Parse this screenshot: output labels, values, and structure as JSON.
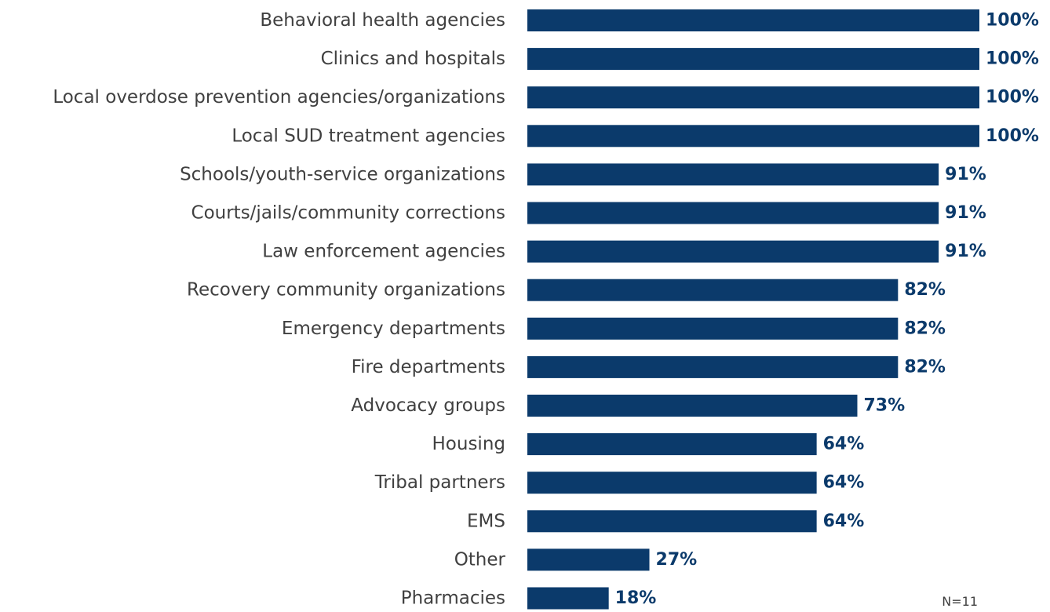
{
  "chart_data": {
    "type": "bar",
    "orientation": "horizontal",
    "categories": [
      "Behavioral health agencies",
      "Clinics and hospitals",
      "Local overdose prevention agencies/organizations",
      "Local SUD treatment agencies",
      "Schools/youth-service organizations",
      "Courts/jails/community corrections",
      "Law enforcement agencies",
      "Recovery community organizations",
      "Emergency departments",
      "Fire departments",
      "Advocacy groups",
      "Housing",
      "Tribal partners",
      "EMS",
      "Other",
      "Pharmacies"
    ],
    "values": [
      100,
      100,
      100,
      100,
      91,
      91,
      91,
      82,
      82,
      82,
      73,
      64,
      64,
      64,
      27,
      18
    ],
    "value_labels": [
      "100%",
      "100%",
      "100%",
      "100%",
      "91%",
      "91%",
      "91%",
      "82%",
      "82%",
      "82%",
      "73%",
      "64%",
      "64%",
      "64%",
      "27%",
      "18%"
    ],
    "xlim": [
      0,
      100
    ],
    "grid": false,
    "bar_color": "#0b3a6b",
    "label_color": "#404040",
    "value_label_color": "#0b3a6b"
  },
  "note": "N=11"
}
